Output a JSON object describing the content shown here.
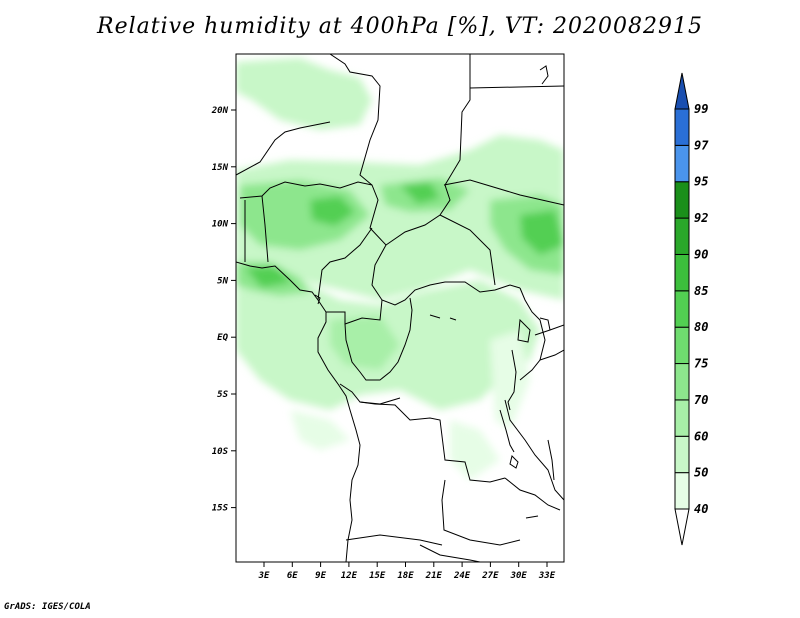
{
  "title": "Relative humidity at 400hPa [%], VT: 2020082915",
  "credit": "GrADS: IGES/COLA",
  "map": {
    "lon_ticks": [
      "3E",
      "6E",
      "9E",
      "12E",
      "15E",
      "18E",
      "21E",
      "24E",
      "27E",
      "30E",
      "33E"
    ],
    "lat_ticks": [
      "20N",
      "15N",
      "10N",
      "5N",
      "EQ",
      "5S",
      "10S",
      "15S"
    ]
  },
  "colorbar": {
    "levels": [
      "40",
      "50",
      "60",
      "70",
      "75",
      "80",
      "85",
      "90",
      "92",
      "95",
      "97",
      "99"
    ],
    "colors": [
      "#ffffff",
      "#e6fde6",
      "#c8f7c8",
      "#a8efa8",
      "#8de68d",
      "#6fdc6f",
      "#52cf52",
      "#3cbf3c",
      "#2aa82a",
      "#1a8f1a",
      "#4a94ec",
      "#2a6fd6",
      "#1a4fb0"
    ]
  },
  "chart_data": {
    "type": "heatmap",
    "title": "Relative humidity at 400hPa [%], VT: 2020082915",
    "x_ticks": [
      "3E",
      "6E",
      "9E",
      "12E",
      "15E",
      "18E",
      "21E",
      "24E",
      "27E",
      "30E",
      "33E"
    ],
    "y_ticks": [
      "20N",
      "15N",
      "10N",
      "5N",
      "EQ",
      "5S",
      "10S",
      "15S"
    ],
    "levels": [
      40,
      50,
      60,
      70,
      75,
      80,
      85,
      90,
      92,
      95,
      97,
      99
    ]
  }
}
